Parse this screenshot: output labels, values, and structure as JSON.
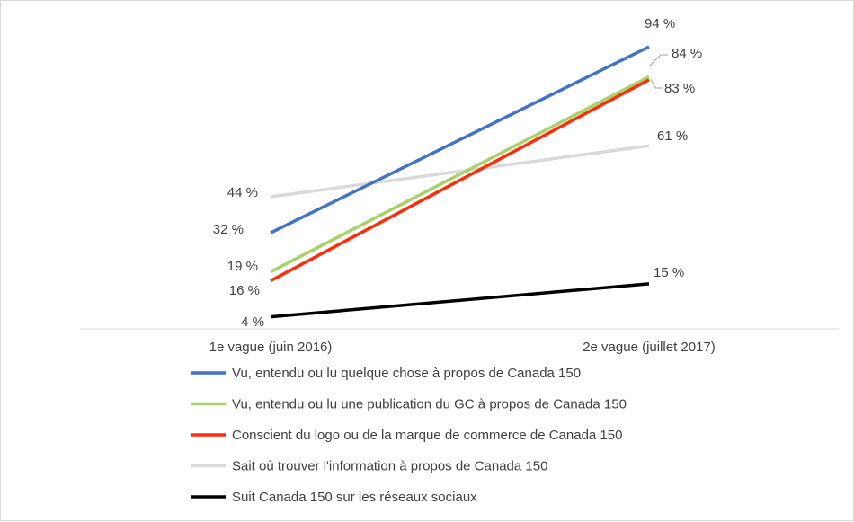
{
  "chart_data": {
    "type": "line",
    "x": [
      "1e vague (juin 2016)",
      "2e vague (juillet 2017)"
    ],
    "ylim": [
      0,
      100
    ],
    "grid": false,
    "legend_position": "bottom",
    "series": [
      {
        "name": "Vu, entendu ou lu quelque chose à propos de Canada 150",
        "color": "#4472c4",
        "values": [
          32,
          94
        ],
        "labels": [
          "32 %",
          "94 %"
        ]
      },
      {
        "name": "Vu, entendu ou lu une publication du GC à propos de Canada 150",
        "color": "#a9d16a",
        "values": [
          19,
          84
        ],
        "labels": [
          "19 %",
          "84 %"
        ]
      },
      {
        "name": "Conscient du logo ou de la marque de commerce de Canada 150",
        "color": "#ff2d0a",
        "values": [
          16,
          83
        ],
        "labels": [
          "16 %",
          "83 %"
        ]
      },
      {
        "name": "Sait où trouver l'information à propos de Canada 150",
        "color": "#d9d9d9",
        "values": [
          44,
          61
        ],
        "labels": [
          "44 %",
          "61 %"
        ]
      },
      {
        "name": "Suit Canada 150 sur les réseaux sociaux",
        "color": "#000000",
        "values": [
          4,
          15
        ],
        "labels": [
          "4 %",
          "15 %"
        ]
      }
    ]
  }
}
